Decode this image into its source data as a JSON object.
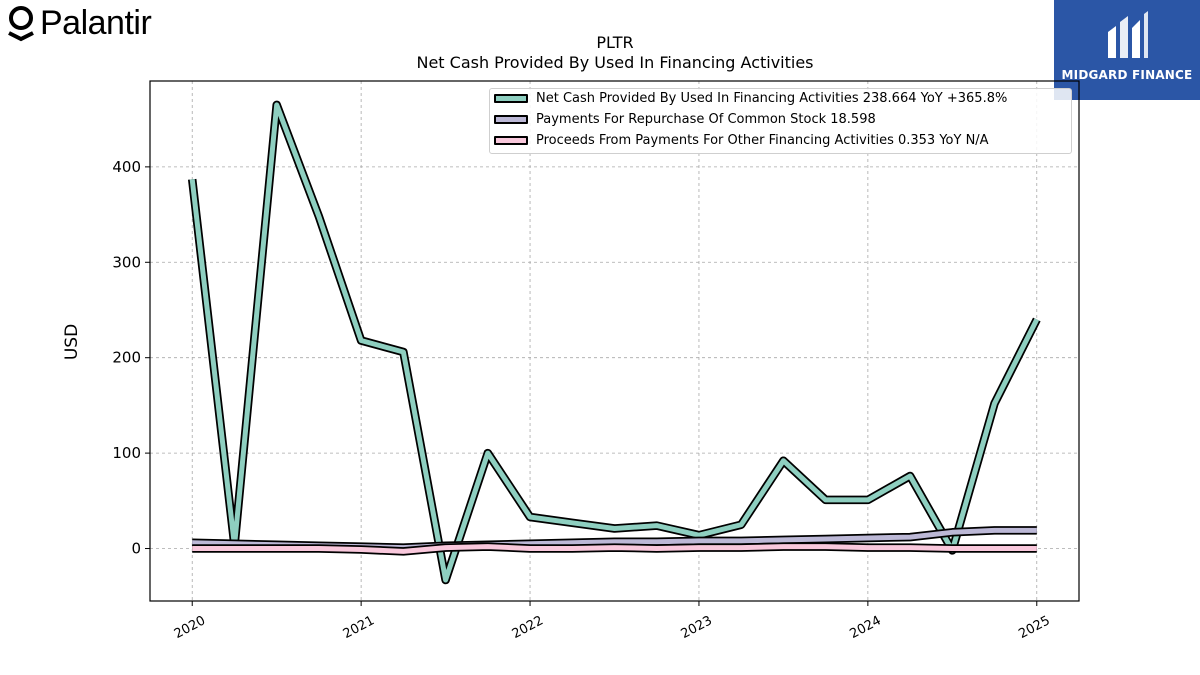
{
  "branding": {
    "left_logo_text": "Palantir",
    "right_logo_text": "MIDGARD FINANCE",
    "right_logo_bg": "#2b56a6"
  },
  "chart_data": {
    "type": "line",
    "title": "PLTR",
    "subtitle": "Net Cash Provided By Used In Financing Activities",
    "xlabel": "",
    "ylabel": "USD",
    "ylim": [
      -55,
      490
    ],
    "xlim": [
      2019.75,
      2025.25
    ],
    "yticks": [
      0,
      100,
      200,
      300,
      400
    ],
    "xticks": [
      "2020",
      "2021",
      "2022",
      "2023",
      "2024",
      "2025"
    ],
    "grid": true,
    "legend_position": "top-right",
    "x": [
      2020.0,
      2020.25,
      2020.5,
      2020.75,
      2021.0,
      2021.25,
      2021.5,
      2021.75,
      2022.0,
      2022.25,
      2022.5,
      2022.75,
      2023.0,
      2023.25,
      2023.5,
      2023.75,
      2024.0,
      2024.25,
      2024.5,
      2024.75,
      2025.0
    ],
    "series": [
      {
        "name": "Net Cash Provided By Used In Financing Activities",
        "legend_label": "Net Cash Provided By Used In Financing Activities  238.664 YoY +365.8%",
        "color": "#8ecfc0",
        "values": [
          387,
          3,
          465,
          348,
          218,
          206,
          -33,
          100,
          33,
          27,
          21,
          24,
          14,
          25,
          92,
          51,
          51,
          76,
          -2,
          152,
          240
        ]
      },
      {
        "name": "Payments For Repurchase Of Common Stock",
        "legend_label": "Payments For Repurchase Of Common Stock  18.598",
        "color": "#bcb8d6",
        "values": [
          6,
          5,
          4,
          3,
          2,
          1,
          3,
          4,
          5,
          6,
          7,
          7,
          8,
          8,
          9,
          10,
          11,
          12,
          17,
          19,
          19
        ]
      },
      {
        "name": "Proceeds From Payments For Other Financing Activities",
        "legend_label": "Proceeds From Payments For Other Financing Activities  0.353 YoY N/A",
        "color": "#f9c8dc",
        "values": [
          0,
          0,
          0,
          0,
          -1,
          -3,
          1,
          2,
          0,
          0,
          1,
          0,
          1,
          1,
          2,
          2,
          1,
          1,
          0,
          0,
          0
        ]
      }
    ]
  }
}
